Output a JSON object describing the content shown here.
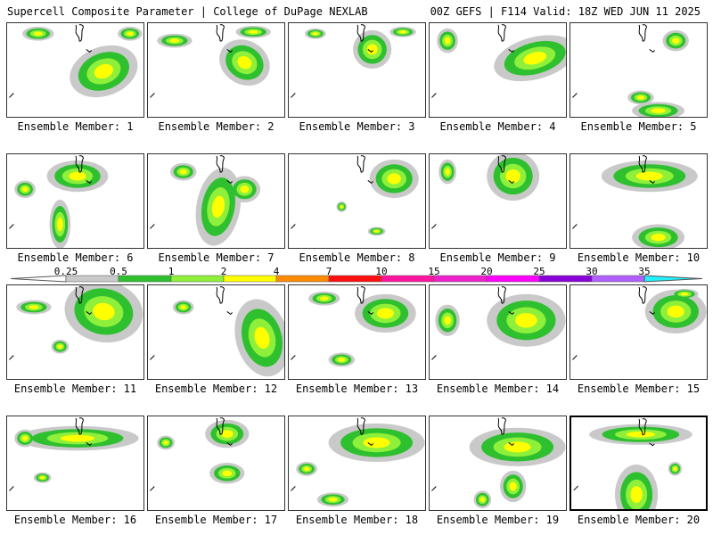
{
  "header": {
    "left": "Supercell Composite Parameter | College of DuPage NEXLAB",
    "right": "00Z GEFS | F114 Valid: 18Z WED JUN 11 2025"
  },
  "colorbar": {
    "labels": [
      "0.25",
      "0.5",
      "1",
      "2",
      "4",
      "7",
      "10",
      "15",
      "20",
      "25",
      "30",
      "35"
    ],
    "colors": [
      "#c9c9c9",
      "#2fc02f",
      "#8ef03a",
      "#ffff00",
      "#ff8a00",
      "#ff1010",
      "#ff14a0",
      "#ee22cc",
      "#ff00ff",
      "#8a00d8",
      "#b060ff",
      "#22f0ff"
    ]
  },
  "members": [
    {
      "label": "Ensemble Member: 1"
    },
    {
      "label": "Ensemble Member: 2"
    },
    {
      "label": "Ensemble Member: 3"
    },
    {
      "label": "Ensemble Member: 4"
    },
    {
      "label": "Ensemble Member: 5"
    },
    {
      "label": "Ensemble Member: 6"
    },
    {
      "label": "Ensemble Member: 7"
    },
    {
      "label": "Ensemble Member: 8"
    },
    {
      "label": "Ensemble Member: 9"
    },
    {
      "label": "Ensemble Member: 10"
    },
    {
      "label": "Ensemble Member: 11"
    },
    {
      "label": "Ensemble Member: 12"
    },
    {
      "label": "Ensemble Member: 13"
    },
    {
      "label": "Ensemble Member: 14"
    },
    {
      "label": "Ensemble Member: 15"
    },
    {
      "label": "Ensemble Member: 16"
    },
    {
      "label": "Ensemble Member: 17"
    },
    {
      "label": "Ensemble Member: 18"
    },
    {
      "label": "Ensemble Member: 19"
    },
    {
      "label": "Ensemble Member: 20"
    }
  ]
}
